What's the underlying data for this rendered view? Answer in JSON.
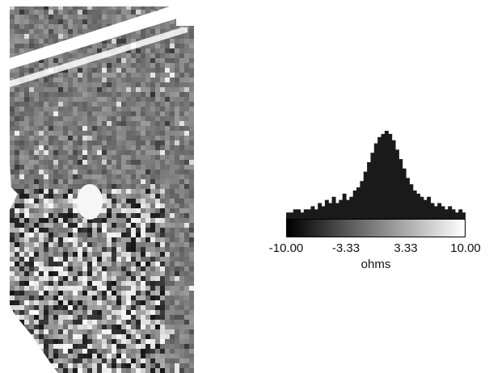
{
  "legend": {
    "units": "ohms",
    "ticks": [
      "-10.00",
      "-3.33",
      "3.33",
      "10.00"
    ],
    "range": [
      -10.0,
      10.0
    ],
    "ramp_colors": [
      "#000000",
      "#ffffff"
    ],
    "histogram": [
      2,
      2,
      3,
      3,
      2,
      3,
      3,
      4,
      3,
      5,
      4,
      6,
      5,
      7,
      5,
      6,
      8,
      6,
      7,
      9,
      10,
      12,
      15,
      18,
      21,
      24,
      26,
      27,
      28,
      27,
      25,
      22,
      19,
      16,
      13,
      11,
      9,
      8,
      7,
      6,
      7,
      5,
      4,
      5,
      4,
      3,
      4,
      3,
      2,
      3,
      2
    ]
  },
  "survey_colors": {
    "background": "#9a9a9a",
    "dark": "#111111",
    "light": "#f2f2f2",
    "mask": "#ffffff"
  }
}
